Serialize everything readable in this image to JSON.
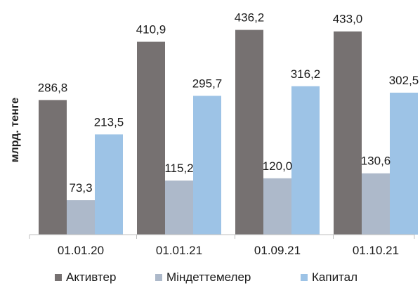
{
  "chart_data": {
    "type": "bar",
    "categories": [
      "01.01.20",
      "01.01.21",
      "01.09.21",
      "01.10.21"
    ],
    "series": [
      {
        "name": "Активтер",
        "values": [
          286.8,
          410.9,
          436.2,
          433.0
        ],
        "labels": [
          "286,8",
          "410,9",
          "436,2",
          "433,0"
        ],
        "color": "#767171"
      },
      {
        "name": "Міндеттемелер",
        "values": [
          73.3,
          115.2,
          120.0,
          130.6
        ],
        "labels": [
          "73,3",
          "115,2",
          "120,0",
          "130,6"
        ],
        "color": "#adb9ca"
      },
      {
        "name": "Капитал",
        "values": [
          213.5,
          295.7,
          316.2,
          302.5
        ],
        "labels": [
          "213,5",
          "295,7",
          "316,2",
          "302,5"
        ],
        "color": "#9dc3e6"
      }
    ],
    "title": "",
    "xlabel": "",
    "ylabel": "млрд. тенге",
    "ylim": [
      0,
      470
    ],
    "grid": false,
    "legend_position": "bottom"
  }
}
